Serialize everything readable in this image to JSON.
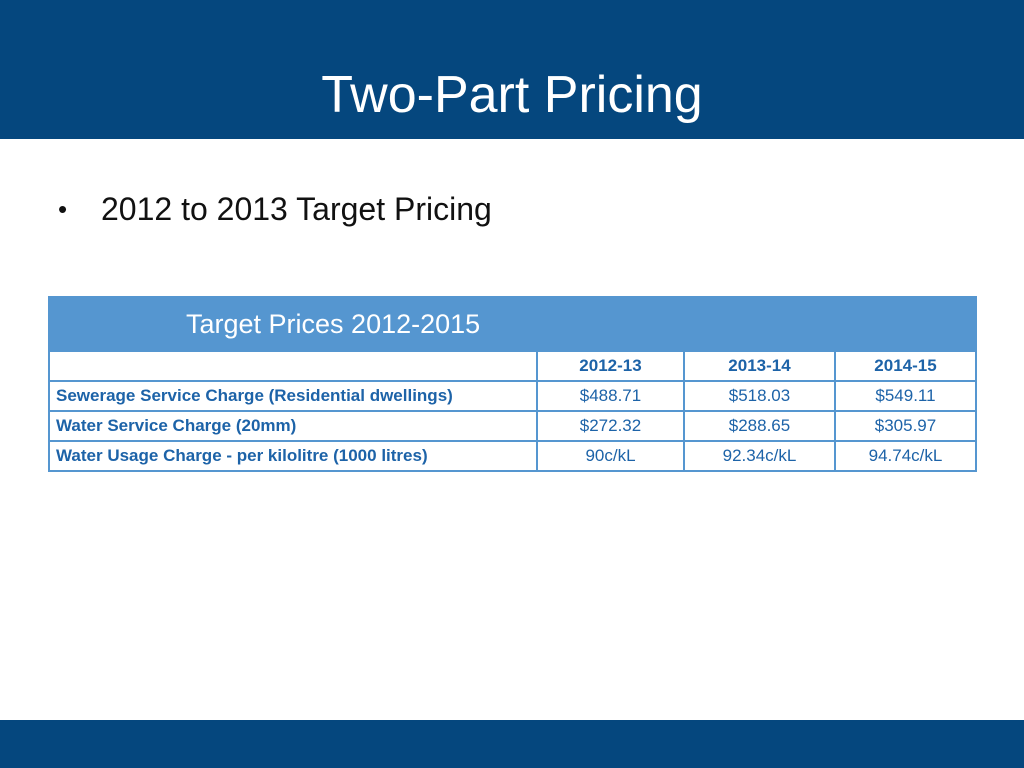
{
  "slide": {
    "title": "Two-Part Pricing",
    "bullet": "2012 to 2013 Target Pricing"
  },
  "table": {
    "caption": "Target Prices 2012-2015",
    "columns": [
      "",
      "2012-13",
      "2013-14",
      "2014-15"
    ],
    "rows": [
      {
        "label": "Sewerage Service Charge (Residential dwellings)",
        "values": [
          "$488.71",
          "$518.03",
          "$549.11"
        ]
      },
      {
        "label": "Water Service Charge (20mm)",
        "values": [
          "$272.32",
          "$288.65",
          "$305.97"
        ]
      },
      {
        "label": "Water Usage Charge - per kilolitre (1000 litres)",
        "values": [
          "90c/kL",
          "92.34c/kL",
          "94.74c/kL"
        ]
      }
    ]
  },
  "colors": {
    "title_bar": "#05477e",
    "table_header": "#5596d0",
    "table_text": "#1d63a8"
  }
}
